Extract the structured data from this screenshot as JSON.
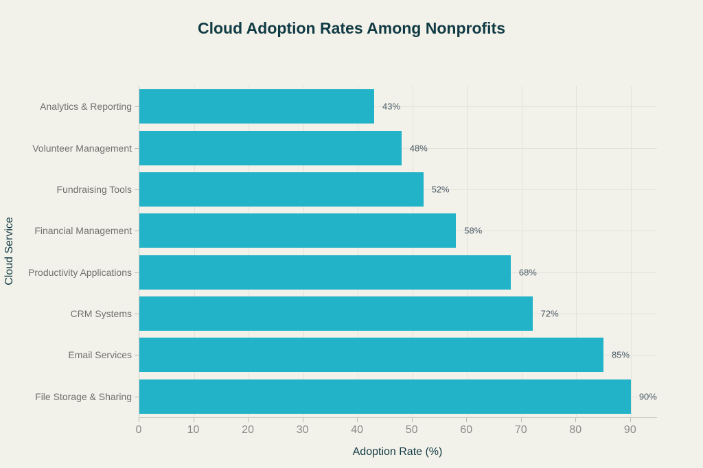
{
  "colors": {
    "background": "#f2f1ea",
    "bar": "#22b3c8",
    "heading": "#113b44",
    "grid": "#e3e1da",
    "axis_line": "#cbcac3",
    "tick_mark": "#b9b8b2",
    "tick_label": "#8b8a85",
    "category_label": "#71706c",
    "value_label": "#4a5b66"
  },
  "chart_data": {
    "type": "bar",
    "orientation": "horizontal",
    "title": "Cloud Adoption Rates Among Nonprofits",
    "xlabel": "Adoption Rate (%)",
    "ylabel": "Cloud Service",
    "categories": [
      "Analytics & Reporting",
      "Volunteer Management",
      "Fundraising Tools",
      "Financial Management",
      "Productivity Applications",
      "CRM Systems",
      "Email Services",
      "File Storage & Sharing"
    ],
    "values": [
      43,
      48,
      52,
      58,
      68,
      72,
      85,
      90
    ],
    "value_labels": [
      "43%",
      "48%",
      "52%",
      "58%",
      "68%",
      "72%",
      "85%",
      "90%"
    ],
    "x_ticks": [
      0,
      10,
      20,
      30,
      40,
      50,
      60,
      70,
      80,
      90
    ],
    "xlim": [
      0,
      94.8
    ],
    "grid": true,
    "legend": false
  }
}
